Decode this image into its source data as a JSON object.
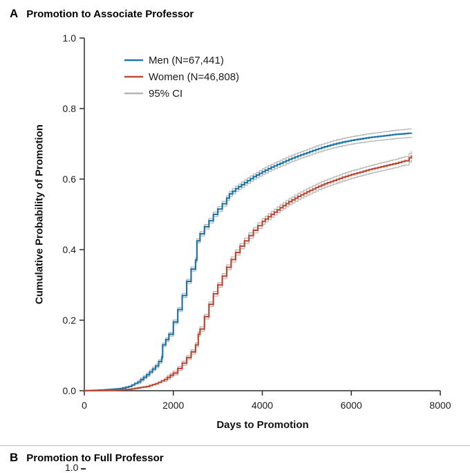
{
  "panel_a": {
    "letter": "A",
    "title": "Promotion to Associate Professor"
  },
  "panel_b": {
    "letter": "B",
    "title": "Promotion to Full Professor",
    "visible_tick_label": "1.0"
  },
  "chart_data": {
    "type": "line",
    "subtype": "cumulative-incidence-step-curve",
    "title": "Promotion to Associate Professor",
    "xlabel": "Days to Promotion",
    "ylabel": "Cumulative Probability of Promotion",
    "xlim": [
      0,
      8000
    ],
    "ylim": [
      0,
      1
    ],
    "x_ticks": [
      0,
      2000,
      4000,
      6000,
      8000
    ],
    "y_ticks": [
      0,
      0.2,
      0.4,
      0.6,
      0.8,
      1
    ],
    "grid": false,
    "legend_position": "upper-left-inside",
    "colors": {
      "men": "#1d76a8",
      "women": "#bd4a35",
      "ci": "#b4b4b4",
      "axis": "#2b2b2b"
    },
    "legend": [
      {
        "label": "Men (N=67,441)",
        "series": "men"
      },
      {
        "label": "Women (N=46,808)",
        "series": "women"
      },
      {
        "label": "95% CI",
        "series": "ci"
      }
    ],
    "series": [
      {
        "name": "men",
        "x": [
          0,
          400,
          800,
          1000,
          1200,
          1400,
          1600,
          1740,
          1760,
          1900,
          2000,
          2100,
          2200,
          2300,
          2400,
          2500,
          2530,
          2600,
          2700,
          2800,
          2900,
          3000,
          3100,
          3200,
          3260,
          3400,
          3600,
          3800,
          4000,
          4200,
          4400,
          4600,
          4800,
          5000,
          5200,
          5400,
          5600,
          5800,
          6000,
          6200,
          6400,
          6600,
          6800,
          7000,
          7200,
          7350
        ],
        "y": [
          0,
          0.002,
          0.006,
          0.012,
          0.025,
          0.045,
          0.07,
          0.095,
          0.13,
          0.16,
          0.195,
          0.23,
          0.27,
          0.31,
          0.345,
          0.37,
          0.425,
          0.445,
          0.465,
          0.482,
          0.5,
          0.515,
          0.53,
          0.546,
          0.558,
          0.573,
          0.59,
          0.607,
          0.621,
          0.634,
          0.645,
          0.656,
          0.666,
          0.675,
          0.684,
          0.692,
          0.699,
          0.705,
          0.71,
          0.714,
          0.718,
          0.721,
          0.724,
          0.727,
          0.729,
          0.731
        ]
      },
      {
        "name": "women",
        "x": [
          0,
          600,
          1000,
          1400,
          1600,
          1800,
          2000,
          2100,
          2200,
          2300,
          2400,
          2500,
          2560,
          2600,
          2700,
          2800,
          2900,
          3000,
          3100,
          3200,
          3300,
          3400,
          3500,
          3600,
          3700,
          3800,
          3900,
          4000,
          4200,
          4400,
          4600,
          4800,
          5000,
          5200,
          5400,
          5600,
          5800,
          6000,
          6200,
          6400,
          6600,
          6800,
          7000,
          7200,
          7300,
          7350
        ],
        "y": [
          0,
          0.001,
          0.004,
          0.012,
          0.02,
          0.032,
          0.05,
          0.063,
          0.078,
          0.094,
          0.11,
          0.13,
          0.16,
          0.175,
          0.21,
          0.245,
          0.275,
          0.3,
          0.325,
          0.35,
          0.372,
          0.392,
          0.41,
          0.425,
          0.44,
          0.455,
          0.468,
          0.48,
          0.5,
          0.519,
          0.536,
          0.551,
          0.564,
          0.576,
          0.587,
          0.596,
          0.605,
          0.613,
          0.62,
          0.627,
          0.633,
          0.639,
          0.645,
          0.652,
          0.66,
          0.667
        ]
      }
    ],
    "ci_halfwidth": {
      "at_x0": 0.003,
      "at_xmax": 0.013
    }
  }
}
